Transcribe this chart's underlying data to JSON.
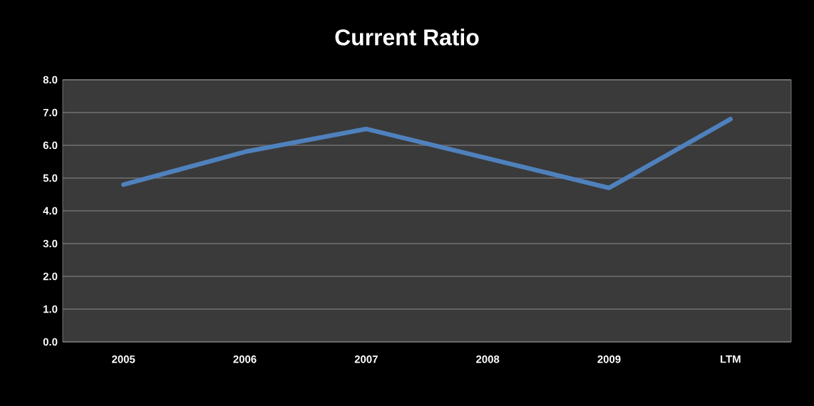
{
  "chart_data": {
    "type": "line",
    "title": "Current Ratio",
    "categories": [
      "2005",
      "2006",
      "2007",
      "2008",
      "2009",
      "LTM"
    ],
    "series": [
      {
        "color": "#4f81bd",
        "values": [
          4.8,
          5.8,
          6.5,
          5.6,
          4.7,
          6.8
        ]
      }
    ],
    "ylim": [
      0,
      8
    ],
    "yticks": [
      {
        "value": 0,
        "label": "0.0"
      },
      {
        "value": 1,
        "label": "1.0"
      },
      {
        "value": 2,
        "label": "2.0"
      },
      {
        "value": 3,
        "label": "3.0"
      },
      {
        "value": 4,
        "label": "4.0"
      },
      {
        "value": 5,
        "label": "5.0"
      },
      {
        "value": 6,
        "label": "6.0"
      },
      {
        "value": 7,
        "label": "7.0"
      },
      {
        "value": 8,
        "label": "8.0"
      }
    ],
    "grid": "y"
  }
}
